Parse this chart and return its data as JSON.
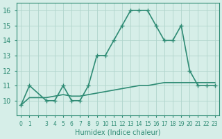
{
  "x_upper": [
    0,
    1,
    3,
    4,
    5,
    6,
    7,
    8,
    9,
    10,
    11,
    12,
    13,
    14,
    15,
    16,
    17,
    18,
    19,
    20,
    21,
    22,
    23
  ],
  "y_upper": [
    9.7,
    11.0,
    10.0,
    10.0,
    11.0,
    10.0,
    10.0,
    11.0,
    13.0,
    13.0,
    14.0,
    15.0,
    16.0,
    16.0,
    16.0,
    15.0,
    14.0,
    14.0,
    15.0,
    12.0,
    11.0,
    11.0,
    11.0
  ],
  "x_lower": [
    0,
    1,
    3,
    4,
    5,
    6,
    7,
    8,
    9,
    10,
    11,
    12,
    13,
    14,
    15,
    16,
    17,
    18,
    19,
    20,
    21,
    22,
    23
  ],
  "y_lower": [
    9.7,
    10.2,
    10.2,
    10.3,
    10.4,
    10.3,
    10.3,
    10.4,
    10.5,
    10.6,
    10.7,
    10.8,
    10.9,
    11.0,
    11.0,
    11.1,
    11.2,
    11.2,
    11.2,
    11.2,
    11.2,
    11.2,
    11.2
  ],
  "line_color": "#2E8B74",
  "bg_color": "#D6EEE8",
  "grid_color": "#B0D4CC",
  "xlabel": "Humidex (Indice chaleur)",
  "ylim": [
    9.0,
    16.5
  ],
  "yticks": [
    10,
    11,
    12,
    13,
    14,
    15,
    16
  ],
  "xticks": [
    0,
    1,
    2,
    3,
    4,
    5,
    6,
    7,
    8,
    9,
    10,
    11,
    12,
    13,
    14,
    15,
    16,
    17,
    18,
    19,
    20,
    21,
    22,
    23
  ],
  "xtick_labels": [
    "0",
    "1",
    "",
    "3",
    "4",
    "5",
    "6",
    "7",
    "8",
    "9",
    "10",
    "11",
    "12",
    "13",
    "14",
    "15",
    "16",
    "17",
    "18",
    "19",
    "20",
    "21",
    "22",
    "23"
  ],
  "marker": "+",
  "marker_size": 5,
  "linewidth": 1.2
}
